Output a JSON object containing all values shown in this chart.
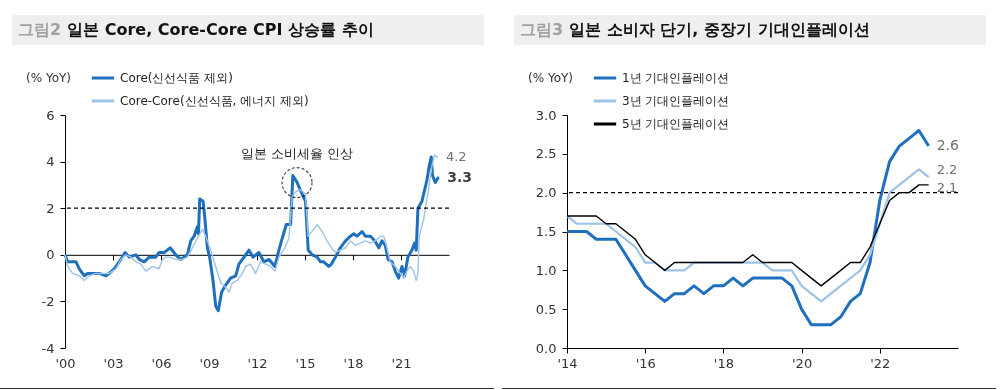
{
  "chart_data": [
    {
      "type": "line",
      "title": "그림2 일본 Core, Core-Core CPI 상승률 추이",
      "ylabel": "(% YoY)",
      "xlim": [
        2000,
        2024
      ],
      "ylim": [
        -4,
        6
      ],
      "yticks": [
        -4,
        -2,
        0,
        2,
        4,
        6
      ],
      "xticks": [
        {
          "value": 2000,
          "label": "'00"
        },
        {
          "value": 2003,
          "label": "'03"
        },
        {
          "value": 2006,
          "label": "'06"
        },
        {
          "value": 2009,
          "label": "'09"
        },
        {
          "value": 2012,
          "label": "'12"
        },
        {
          "value": 2015,
          "label": "'15"
        },
        {
          "value": 2018,
          "label": "'18"
        },
        {
          "value": 2021,
          "label": "'21"
        }
      ],
      "legend": "top left",
      "line_style": "solid",
      "ref_lines": [
        {
          "axis": "y",
          "value": 2,
          "color": "#000000",
          "line_style": "dashed"
        }
      ],
      "annotations": [
        {
          "text": "일본 소비세율 인상",
          "x": 2014.5,
          "y": 3.1
        }
      ],
      "series": [
        {
          "name": "Core(신선식품 제외)",
          "color": "#1f6fbf",
          "x": [
            2000,
            2000.17,
            2000.37,
            2000.69,
            2000.89,
            2001.21,
            2001.41,
            2001.73,
            2002.14,
            2002.56,
            2002.77,
            2003.08,
            2003.39,
            2003.76,
            2004.01,
            2004.43,
            2004.64,
            2004.95,
            2005.26,
            2005.67,
            2005.88,
            2006.2,
            2006.57,
            2006.92,
            2007.23,
            2007.44,
            2007.65,
            2007.86,
            2008.07,
            2008.27,
            2008.34,
            2008.42,
            2008.63,
            2008.75,
            2008.9,
            2009.04,
            2009.25,
            2009.42,
            2009.58,
            2009.79,
            2010.04,
            2010.35,
            2010.67,
            2010.87,
            2011.19,
            2011.5,
            2011.75,
            2012.12,
            2012.43,
            2012.75,
            2013.12,
            2013.33,
            2013.53,
            2013.83,
            2014.1,
            2014.24,
            2014.51,
            2014.82,
            2015.03,
            2015.2,
            2015.45,
            2015.76,
            2015.97,
            2016.17,
            2016.49,
            2016.65,
            2016.9,
            2017.21,
            2017.53,
            2017.84,
            2018.05,
            2018.25,
            2018.57,
            2018.77,
            2019.09,
            2019.36,
            2019.61,
            2019.81,
            2020.02,
            2020.19,
            2020.44,
            2020.64,
            2020.85,
            2021.06,
            2021.23,
            2021.43,
            2021.68,
            2021.85,
            2021.95,
            2022.06,
            2022.31,
            2022.62,
            2022.76,
            2022.89,
            2022.97,
            2023.14,
            2023.31,
            2023.39
          ],
          "values": [
            0,
            -0.3,
            -0.3,
            -0.3,
            -0.6,
            -0.9,
            -0.8,
            -0.8,
            -0.8,
            -0.9,
            -0.8,
            -0.6,
            -0.3,
            0.1,
            -0.1,
            0,
            -0.2,
            -0.3,
            -0.1,
            -0.1,
            0.1,
            0.1,
            0.3,
            0,
            -0.2,
            -0.1,
            0,
            0.6,
            0.8,
            1.2,
            0.9,
            2.4,
            2.3,
            1.5,
            0.3,
            -0.1,
            -1.1,
            -2.2,
            -2.4,
            -1.6,
            -1.3,
            -1,
            -0.9,
            -0.4,
            -0.1,
            0.2,
            -0.1,
            0.1,
            -0.3,
            -0.2,
            -0.5,
            0.1,
            0.6,
            1.3,
            1.3,
            3.4,
            3.1,
            2.6,
            2.3,
            0.2,
            0,
            -0.1,
            -0.3,
            -0.3,
            -0.5,
            -0.4,
            -0.1,
            0.3,
            0.6,
            0.8,
            0.9,
            0.8,
            1,
            0.8,
            0.8,
            0.6,
            0.3,
            0.6,
            0.4,
            -0.2,
            -0.3,
            -0.7,
            -1,
            -0.5,
            -0.9,
            -0.1,
            0.2,
            0.5,
            0.2,
            2,
            2.3,
            3.2,
            3.8,
            4.2,
            3.4,
            3.1,
            3.3,
            3.3
          ],
          "value_labels": [
            null,
            null,
            null,
            null,
            null,
            null,
            null,
            null,
            null,
            null,
            null,
            null,
            null,
            null,
            null,
            null,
            null,
            null,
            null,
            null,
            null,
            null,
            null,
            null,
            null,
            null,
            null,
            null,
            null,
            null,
            null,
            null,
            null,
            null,
            null,
            null,
            null,
            null,
            null,
            null,
            null,
            null,
            null,
            null,
            null,
            null,
            null,
            null,
            null,
            null,
            null,
            null,
            null,
            null,
            null,
            null,
            null,
            null,
            null,
            null,
            null,
            null,
            null,
            null,
            null,
            null,
            null,
            null,
            null,
            null,
            null,
            null,
            null,
            null,
            null,
            null,
            null,
            null,
            null,
            null,
            null,
            null,
            null,
            null,
            null,
            null,
            null,
            null,
            null,
            null,
            null,
            null,
            null,
            null,
            null,
            null,
            null,
            "3.3"
          ]
        },
        {
          "name": "Core-Core(신선식품, 에너지 제외)",
          "color": "#9dc3e6",
          "x": [
            2000,
            2000.17,
            2000.48,
            2000.89,
            2001.21,
            2001.52,
            2001.93,
            2002.35,
            2002.77,
            2003.18,
            2003.49,
            2003.8,
            2004.12,
            2004.43,
            2004.74,
            2005.05,
            2005.47,
            2005.88,
            2006.09,
            2006.3,
            2006.51,
            2006.92,
            2007.34,
            2007.65,
            2007.96,
            2008.27,
            2008.59,
            2008.79,
            2009.11,
            2009.42,
            2009.73,
            2010.04,
            2010.25,
            2010.46,
            2010.77,
            2011.08,
            2011.29,
            2011.6,
            2011.91,
            2012.22,
            2012.54,
            2012.85,
            2013.12,
            2013.37,
            2013.74,
            2013.99,
            2014.2,
            2014.41,
            2014.72,
            2015.03,
            2015.2,
            2015.55,
            2015.76,
            2016.07,
            2016.38,
            2016.65,
            2016.9,
            2017.21,
            2017.53,
            2017.84,
            2018.15,
            2018.46,
            2018.77,
            2019.09,
            2019.4,
            2019.71,
            2019.92,
            2020.12,
            2020.33,
            2020.64,
            2020.96,
            2021.16,
            2021.37,
            2021.58,
            2021.79,
            2021.95,
            2022.06,
            2022.14,
            2022.41,
            2022.72,
            2022.93,
            2023.1,
            2023.22,
            2023.31
          ],
          "values": [
            0,
            -0.5,
            -0.8,
            -0.9,
            -1.1,
            -0.9,
            -0.8,
            -0.8,
            -0.8,
            -0.6,
            -0.2,
            0,
            -0.1,
            -0.3,
            -0.4,
            -0.7,
            -0.5,
            -0.6,
            -0.2,
            -0.1,
            -0.1,
            -0.2,
            -0.2,
            -0.1,
            0.3,
            0.7,
            1.1,
            0.8,
            0.2,
            -0.5,
            -1.2,
            -1.4,
            -1.6,
            -1.2,
            -1.1,
            -0.8,
            -0.5,
            -0.4,
            -0.8,
            -0.3,
            -0.4,
            -0.5,
            -0.7,
            -0.1,
            0.3,
            0.7,
            2.5,
            2.7,
            2.8,
            2.6,
            0.8,
            1.1,
            1.3,
            1,
            0.6,
            0.3,
            0.1,
            0.2,
            0.3,
            0.6,
            0.4,
            0.5,
            0.6,
            0.5,
            0.6,
            0.8,
            0.8,
            0.3,
            -0.3,
            -0.5,
            -0.8,
            -1,
            -0.7,
            -0.5,
            -0.7,
            -1.1,
            -0.8,
            0.8,
            1.5,
            2.8,
            3.8,
            4.3,
            4.2,
            4.2
          ],
          "value_labels": [
            null,
            null,
            null,
            null,
            null,
            null,
            null,
            null,
            null,
            null,
            null,
            null,
            null,
            null,
            null,
            null,
            null,
            null,
            null,
            null,
            null,
            null,
            null,
            null,
            null,
            null,
            null,
            null,
            null,
            null,
            null,
            null,
            null,
            null,
            null,
            null,
            null,
            null,
            null,
            null,
            null,
            null,
            null,
            null,
            null,
            null,
            null,
            null,
            null,
            null,
            null,
            null,
            null,
            null,
            null,
            null,
            null,
            null,
            null,
            null,
            null,
            null,
            null,
            null,
            null,
            null,
            null,
            null,
            null,
            null,
            null,
            null,
            null,
            null,
            null,
            null,
            null,
            null,
            null,
            null,
            null,
            null,
            null,
            "4.2"
          ]
        }
      ]
    },
    {
      "type": "line",
      "title": "그림3 일본 소비자 단기, 중장기 기대인플레이션",
      "ylabel": "(% YoY)",
      "xlim": [
        2014,
        2024
      ],
      "ylim": [
        0,
        3
      ],
      "yticks": [
        {
          "value": 0,
          "label": "0.0"
        },
        0.5,
        {
          "value": 1,
          "label": "1.0"
        },
        1.5,
        {
          "value": 2,
          "label": "2.0"
        },
        2.5,
        {
          "value": 3,
          "label": "3.0"
        }
      ],
      "xticks": [
        {
          "value": 2014,
          "label": "'14"
        },
        {
          "value": 2016,
          "label": "'16"
        },
        {
          "value": 2018,
          "label": "'18"
        },
        {
          "value": 2020,
          "label": "'20"
        },
        {
          "value": 2022,
          "label": "'22"
        }
      ],
      "x": [
        2014,
        2014.25,
        2014.5,
        2014.75,
        2015,
        2015.25,
        2015.5,
        2015.75,
        2016,
        2016.25,
        2016.5,
        2016.75,
        2017,
        2017.25,
        2017.5,
        2017.75,
        2018,
        2018.25,
        2018.5,
        2018.75,
        2019,
        2019.25,
        2019.5,
        2019.75,
        2020,
        2020.25,
        2020.5,
        2020.75,
        2021,
        2021.25,
        2021.5,
        2021.75,
        2022,
        2022.25,
        2022.5,
        2022.75,
        2023,
        2023.25
      ],
      "legend": "top left",
      "line_style": "solid",
      "ref_lines": [
        {
          "axis": "y",
          "value": 2,
          "color": "#000000",
          "line_style": "dashed"
        }
      ],
      "series": [
        {
          "name": "1년 기대인플레이션",
          "color": "#1f6fbf",
          "values": [
            1.5,
            1.5,
            1.5,
            1.4,
            1.4,
            1.4,
            1.2,
            1.0,
            0.8,
            0.7,
            0.6,
            0.7,
            0.7,
            0.8,
            0.7,
            0.8,
            0.8,
            0.9,
            0.8,
            0.9,
            0.9,
            0.9,
            0.9,
            0.8,
            0.5,
            0.3,
            0.3,
            0.3,
            0.4,
            0.6,
            0.7,
            1.1,
            1.9,
            2.4,
            2.6,
            2.7,
            2.8,
            2.6
          ],
          "value_labels": [
            null,
            null,
            null,
            null,
            null,
            null,
            null,
            null,
            null,
            null,
            null,
            null,
            null,
            null,
            null,
            null,
            null,
            null,
            null,
            null,
            null,
            null,
            null,
            null,
            null,
            null,
            null,
            null,
            null,
            null,
            null,
            null,
            null,
            null,
            null,
            null,
            null,
            "2.6"
          ]
        },
        {
          "name": "3년 기대인플레이션",
          "color": "#9dc3e6",
          "values": [
            1.7,
            1.6,
            1.6,
            1.6,
            1.6,
            1.5,
            1.4,
            1.3,
            1.1,
            1.1,
            1.0,
            1.0,
            1.0,
            1.1,
            null,
            null,
            null,
            null,
            1.1,
            1.1,
            1.1,
            1.0,
            1.0,
            1.0,
            0.8,
            0.7,
            0.6,
            0.7,
            0.8,
            0.9,
            1.0,
            1.2,
            1.6,
            2.0,
            2.1,
            2.2,
            2.3,
            2.2
          ],
          "value_labels": [
            null,
            null,
            null,
            null,
            null,
            null,
            null,
            null,
            null,
            null,
            null,
            null,
            null,
            null,
            null,
            null,
            null,
            null,
            null,
            null,
            null,
            null,
            null,
            null,
            null,
            null,
            null,
            null,
            null,
            null,
            null,
            null,
            null,
            null,
            null,
            null,
            null,
            "2.2"
          ]
        },
        {
          "name": "5년 기대인플레이션",
          "color": "#000000",
          "values": [
            1.7,
            1.7,
            1.7,
            1.7,
            1.6,
            1.6,
            1.5,
            1.4,
            1.2,
            1.1,
            1.0,
            1.1,
            1.1,
            1.1,
            1.1,
            1.1,
            1.1,
            1.1,
            1.1,
            1.2,
            1.1,
            1.1,
            1.1,
            1.1,
            1.0,
            0.9,
            0.8,
            0.9,
            1.0,
            1.1,
            1.1,
            1.3,
            1.6,
            1.9,
            2.0,
            2.0,
            2.1,
            2.1
          ],
          "value_labels": [
            null,
            null,
            null,
            null,
            null,
            null,
            null,
            null,
            null,
            null,
            null,
            null,
            null,
            null,
            null,
            null,
            null,
            null,
            null,
            null,
            null,
            null,
            null,
            null,
            null,
            null,
            null,
            null,
            null,
            null,
            null,
            null,
            null,
            null,
            null,
            null,
            null,
            "2.1"
          ]
        }
      ]
    }
  ]
}
